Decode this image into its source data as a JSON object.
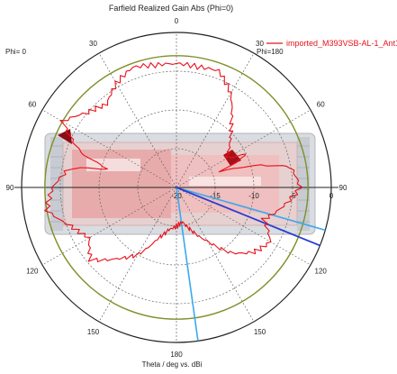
{
  "chart_data": {
    "type": "polar",
    "title": "Farfield Realized Gain Abs (Phi=0)",
    "xlabel": "Theta / deg vs. dBi",
    "phi_labels": {
      "left": "Phi=  0",
      "right": "Phi=180"
    },
    "angle_labels": [
      "0",
      "30",
      "60",
      "90",
      "120",
      "150",
      "180",
      "150",
      "120",
      "90",
      "60",
      "30"
    ],
    "angle_values": [
      0,
      30,
      60,
      90,
      120,
      150,
      180,
      210,
      240,
      270,
      300,
      330
    ],
    "radial_axis": {
      "min": -20,
      "max": 0,
      "ticks": [
        "-20",
        "-15",
        "-10",
        "-5",
        "0"
      ],
      "tick_values": [
        -20,
        -15,
        -10,
        -5,
        0
      ]
    },
    "reference_circle_dbi": -3,
    "legend": {
      "position": "top-right",
      "entries": [
        "imported_M393VSB-AL-1_Ant1"
      ]
    },
    "series": [
      {
        "name": "imported_M393VSB-AL-1_Ant1",
        "color": "#e8101a",
        "theta": [
          0,
          10,
          20,
          30,
          40,
          50,
          60,
          65,
          70,
          75,
          80,
          90,
          100,
          110,
          120,
          130,
          140,
          150,
          160,
          170,
          180,
          190,
          200,
          210,
          220,
          230,
          240,
          250,
          260,
          270,
          280,
          285,
          290,
          300,
          310,
          320,
          330,
          340,
          350
        ],
        "gain_dbi": [
          -4.0,
          -4.2,
          -4.0,
          -6.0,
          -9.0,
          -11.0,
          -12.5,
          -10.0,
          -14.0,
          -9.0,
          -5.0,
          -4.0,
          -6.0,
          -8.0,
          -6.0,
          -7.0,
          -9.0,
          -12.0,
          -14.0,
          -15.5,
          -15.0,
          -14.5,
          -13.0,
          -10.0,
          -8.0,
          -5.5,
          -7.0,
          -5.5,
          -3.0,
          -4.0,
          -6.0,
          -11.0,
          -7.0,
          -3.0,
          -5.0,
          -6.0,
          -4.5,
          -3.5,
          -4.0
        ]
      }
    ],
    "main_lobe": {
      "theta": 112,
      "color": "#2a3ccf"
    },
    "angular_width_lines": {
      "theta": [
        106,
        172
      ],
      "color": "#3aa8ee"
    }
  }
}
